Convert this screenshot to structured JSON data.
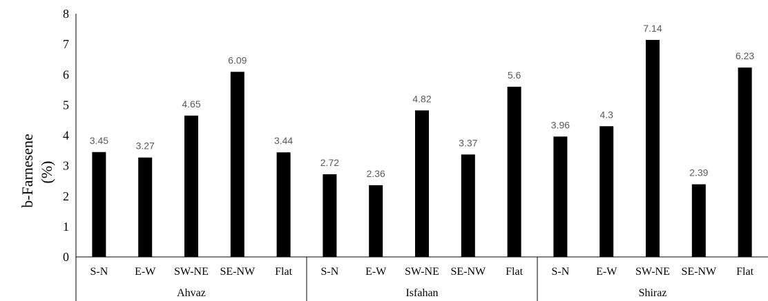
{
  "chart_data": {
    "type": "bar",
    "title": "",
    "ylabel": "b-Farnesene",
    "ylabel_unit": "(%)",
    "xlabel": "",
    "ylim": [
      0,
      8
    ],
    "yticks": [
      0,
      1,
      2,
      3,
      4,
      5,
      6,
      7,
      8
    ],
    "grid": false,
    "legend": "none",
    "bar_color": "#000000",
    "data_label_color": "#595959",
    "groups": [
      {
        "name": "Ahvaz",
        "categories": [
          "S-N",
          "E-W",
          "SW-NE",
          "SE-NW",
          "Flat"
        ],
        "values": [
          3.45,
          3.27,
          4.65,
          6.09,
          3.44
        ],
        "labels": [
          "3.45",
          "3.27",
          "4.65",
          "6.09",
          "3.44"
        ]
      },
      {
        "name": "Isfahan",
        "categories": [
          "S-N",
          "E-W",
          "SW-NE",
          "SE-NW",
          "Flat"
        ],
        "values": [
          2.72,
          2.36,
          4.82,
          3.37,
          5.6
        ],
        "labels": [
          "2.72",
          "2.36",
          "4.82",
          "3.37",
          "5.6"
        ]
      },
      {
        "name": "Shiraz",
        "categories": [
          "S-N",
          "E-W",
          "SW-NE",
          "SE-NW",
          "Flat"
        ],
        "values": [
          3.96,
          4.3,
          7.14,
          2.39,
          6.23
        ],
        "labels": [
          "3.96",
          "4.3",
          "7.14",
          "2.39",
          "6.23"
        ]
      }
    ]
  }
}
